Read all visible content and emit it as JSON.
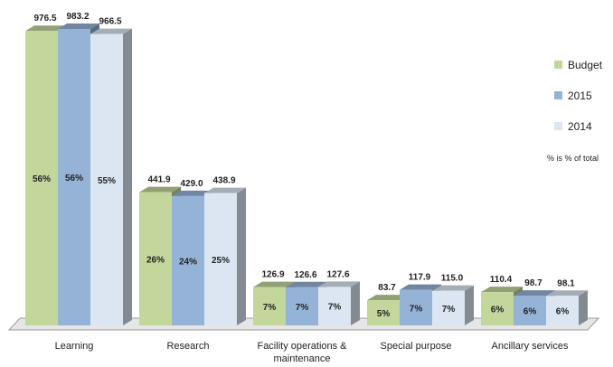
{
  "chart_data": {
    "type": "bar3d",
    "categories": [
      "Learning",
      "Research",
      "Facility operations & maintenance",
      "Special purpose",
      "Ancillary services"
    ],
    "series": [
      {
        "name": "Budget",
        "color": "#c3d69b",
        "values": [
          976.5,
          441.9,
          126.9,
          83.7,
          110.4
        ],
        "share_labels": [
          "56%",
          "26%",
          "7%",
          "5%",
          "6%"
        ]
      },
      {
        "name": "2015",
        "color": "#95b3d7",
        "values": [
          983.2,
          429.0,
          126.6,
          117.9,
          98.7
        ],
        "value_labels": [
          "983.2",
          "429.0",
          "126.6",
          "117.9",
          "98.7"
        ],
        "share_labels": [
          "56%",
          "24%",
          "7%",
          "7%",
          "6%"
        ]
      },
      {
        "name": "2014",
        "color": "#dce6f2",
        "values": [
          966.5,
          438.9,
          127.6,
          115.0,
          98.1
        ],
        "value_labels": [
          "966.5",
          "438.9",
          "127.6",
          "115.0",
          "98.1"
        ],
        "share_labels": [
          "55%",
          "25%",
          "7%",
          "7%",
          "6%"
        ]
      }
    ],
    "annotation": "% is % of total",
    "legend": "right"
  }
}
